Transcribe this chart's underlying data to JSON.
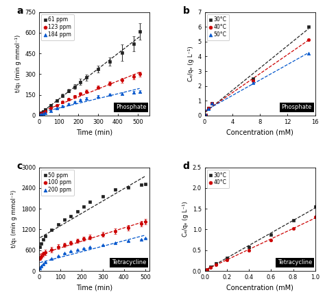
{
  "panel_a": {
    "title": "a",
    "xlabel": "Time (min)",
    "ylabel": "t/q₁ (min g mmol⁻¹)",
    "label": "Phosphate",
    "series": [
      {
        "label": "61 ppm",
        "color": "#222222",
        "marker": "s",
        "x": [
          5,
          10,
          20,
          30,
          60,
          90,
          120,
          150,
          180,
          210,
          240,
          300,
          360,
          420,
          480,
          510
        ],
        "y": [
          10,
          18,
          30,
          42,
          75,
          110,
          145,
          180,
          210,
          245,
          275,
          335,
          390,
          455,
          520,
          610
        ],
        "yerr": [
          3,
          4,
          5,
          6,
          8,
          10,
          12,
          14,
          16,
          20,
          22,
          25,
          30,
          60,
          55,
          60
        ]
      },
      {
        "label": "123 ppm",
        "color": "#cc0000",
        "marker": "o",
        "x": [
          5,
          10,
          20,
          30,
          60,
          90,
          120,
          150,
          180,
          210,
          240,
          300,
          360,
          420,
          480,
          510
        ],
        "y": [
          8,
          14,
          22,
          30,
          52,
          75,
          98,
          118,
          138,
          158,
          175,
          205,
          235,
          255,
          280,
          300
        ],
        "yerr": [
          3,
          3,
          4,
          4,
          5,
          6,
          7,
          8,
          9,
          10,
          11,
          13,
          15,
          17,
          18,
          18
        ]
      },
      {
        "label": "184 ppm",
        "color": "#0055cc",
        "marker": "^",
        "x": [
          5,
          10,
          20,
          30,
          60,
          90,
          120,
          150,
          180,
          210,
          240,
          300,
          360,
          420,
          480,
          510
        ],
        "y": [
          5,
          9,
          14,
          20,
          36,
          52,
          68,
          84,
          98,
          112,
          126,
          140,
          152,
          160,
          168,
          175
        ],
        "yerr": [
          2,
          2,
          3,
          3,
          4,
          4,
          5,
          5,
          6,
          6,
          7,
          7,
          7,
          8,
          8,
          8
        ]
      }
    ],
    "xlim": [
      0,
      560
    ],
    "ylim": [
      0,
      750
    ],
    "xticks": [
      0,
      100,
      200,
      300,
      400,
      500
    ],
    "yticks": [
      0,
      150,
      300,
      450,
      600,
      750
    ]
  },
  "panel_b": {
    "title": "b",
    "xlabel": "Concentration (mM)",
    "ylabel": "Cₑ/qₑ (g L⁻¹)",
    "label": "Phosphate",
    "series": [
      {
        "label": "30°C",
        "color": "#222222",
        "marker": "s",
        "x": [
          0.1,
          0.5,
          1.0,
          7.0,
          15.0
        ],
        "y": [
          0.05,
          0.5,
          0.85,
          2.5,
          6.0
        ]
      },
      {
        "label": "40°C",
        "color": "#cc0000",
        "marker": "o",
        "x": [
          0.1,
          0.5,
          1.0,
          7.0,
          15.0
        ],
        "y": [
          0.05,
          0.5,
          0.85,
          2.35,
          5.15
        ]
      },
      {
        "label": "50°C",
        "color": "#0055cc",
        "marker": "^",
        "x": [
          0.1,
          0.5,
          1.0,
          7.0,
          15.0
        ],
        "y": [
          0.05,
          0.48,
          0.82,
          2.2,
          4.2
        ]
      }
    ],
    "xlim": [
      0,
      16
    ],
    "ylim": [
      0,
      7
    ],
    "xticks": [
      0,
      4,
      8,
      12,
      16
    ],
    "yticks": [
      0,
      1,
      2,
      3,
      4,
      5,
      6,
      7
    ]
  },
  "panel_c": {
    "title": "c",
    "xlabel": "Time (min)",
    "ylabel": "t/q₁ (min g mmol⁻¹)",
    "label": "Tetracycline",
    "series": [
      {
        "label": "50 ppm",
        "color": "#222222",
        "marker": "s",
        "x": [
          5,
          10,
          20,
          30,
          60,
          90,
          120,
          150,
          180,
          210,
          240,
          300,
          360,
          420,
          480,
          500
        ],
        "y": [
          700,
          790,
          920,
          1010,
          1180,
          1340,
          1480,
          1590,
          1720,
          1870,
          2000,
          2160,
          2350,
          2420,
          2490,
          2520
        ],
        "yerr": [
          0,
          0,
          0,
          0,
          0,
          0,
          0,
          0,
          0,
          0,
          0,
          0,
          0,
          0,
          0,
          0
        ]
      },
      {
        "label": "100 ppm",
        "color": "#cc0000",
        "marker": "o",
        "x": [
          5,
          10,
          20,
          30,
          60,
          90,
          120,
          150,
          180,
          210,
          240,
          300,
          360,
          420,
          480,
          500
        ],
        "y": [
          360,
          420,
          490,
          530,
          620,
          700,
          760,
          810,
          870,
          930,
          980,
          1060,
          1150,
          1240,
          1360,
          1430
        ],
        "yerr": [
          50,
          60,
          70,
          80,
          80,
          70,
          60,
          60,
          60,
          60,
          65,
          70,
          75,
          80,
          80,
          80
        ]
      },
      {
        "label": "200 ppm",
        "color": "#0055cc",
        "marker": "^",
        "x": [
          5,
          10,
          20,
          30,
          60,
          90,
          120,
          150,
          180,
          210,
          240,
          300,
          360,
          420,
          480,
          500
        ],
        "y": [
          85,
          130,
          200,
          250,
          360,
          440,
          510,
          565,
          615,
          660,
          700,
          760,
          820,
          870,
          920,
          950
        ],
        "yerr": [
          0,
          0,
          0,
          0,
          0,
          0,
          0,
          0,
          0,
          0,
          0,
          0,
          0,
          0,
          0,
          0
        ]
      }
    ],
    "xlim": [
      0,
      520
    ],
    "ylim": [
      0,
      3000
    ],
    "xticks": [
      0,
      100,
      200,
      300,
      400,
      500
    ],
    "yticks": [
      0,
      600,
      1200,
      1800,
      2400,
      3000
    ]
  },
  "panel_d": {
    "title": "d",
    "xlabel": "Concentration (mM)",
    "ylabel": "Cₑ/qₑ (g L⁻¹)",
    "label": "Tetracycline",
    "series": [
      {
        "label": "30°C",
        "color": "#222222",
        "marker": "s",
        "x": [
          0.02,
          0.05,
          0.1,
          0.2,
          0.4,
          0.6,
          0.8,
          1.0
        ],
        "y": [
          0.04,
          0.1,
          0.18,
          0.32,
          0.58,
          0.88,
          1.22,
          1.55
        ]
      },
      {
        "label": "40°C",
        "color": "#cc0000",
        "marker": "o",
        "x": [
          0.02,
          0.05,
          0.1,
          0.2,
          0.4,
          0.6,
          0.8,
          1.0
        ],
        "y": [
          0.04,
          0.09,
          0.15,
          0.27,
          0.5,
          0.75,
          1.02,
          1.3
        ]
      }
    ],
    "xlim": [
      0,
      1.0
    ],
    "ylim": [
      0,
      2.5
    ],
    "xticks": [
      0.0,
      0.2,
      0.4,
      0.6,
      0.8,
      1.0
    ],
    "yticks": [
      0.0,
      0.5,
      1.0,
      1.5,
      2.0,
      2.5
    ]
  }
}
